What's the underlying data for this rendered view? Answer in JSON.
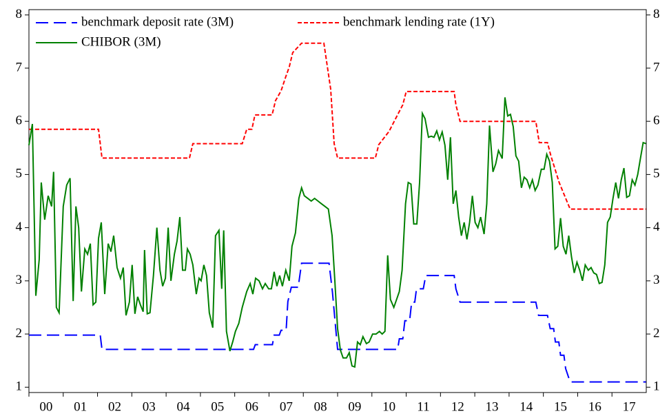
{
  "chart_data": {
    "type": "line",
    "legend": "top-left",
    "xlim": [
      0,
      18
    ],
    "xticks": [
      {
        "value": 0,
        "label": "00"
      },
      {
        "value": 1,
        "label": "01"
      },
      {
        "value": 2,
        "label": "02"
      },
      {
        "value": 3,
        "label": "03"
      },
      {
        "value": 4,
        "label": "04"
      },
      {
        "value": 5,
        "label": "05"
      },
      {
        "value": 6,
        "label": "06"
      },
      {
        "value": 7,
        "label": "07"
      },
      {
        "value": 8,
        "label": "08"
      },
      {
        "value": 9,
        "label": "09"
      },
      {
        "value": 10,
        "label": "10"
      },
      {
        "value": 11,
        "label": "11"
      },
      {
        "value": 12,
        "label": "12"
      },
      {
        "value": 13,
        "label": "13"
      },
      {
        "value": 14,
        "label": "14"
      },
      {
        "value": 15,
        "label": "15"
      },
      {
        "value": 16,
        "label": "16"
      },
      {
        "value": 17,
        "label": "17"
      }
    ],
    "ylim": [
      0.9,
      8.1
    ],
    "yticks": [
      1,
      2,
      3,
      4,
      5,
      6,
      7,
      8
    ],
    "y2lim": [
      0.9,
      8.1
    ],
    "y2ticks": [
      1,
      2,
      3,
      4,
      5,
      6,
      7,
      8
    ],
    "series": [
      {
        "name": "benchmark deposit rate (3M)",
        "color": "#0000ff",
        "style": "long-dash",
        "x": [
          0,
          2.08,
          2.13,
          6.55,
          6.6,
          7.1,
          7.15,
          7.3,
          7.35,
          7.5,
          7.55,
          7.65,
          7.85,
          7.95,
          8.75,
          8.85,
          9.0,
          10.75,
          10.8,
          10.9,
          10.96,
          11.1,
          11.16,
          11.25,
          11.3,
          11.5,
          11.57,
          12.4,
          12.45,
          12.57,
          14.78,
          14.86,
          15.12,
          15.2,
          15.3,
          15.35,
          15.45,
          15.5,
          15.6,
          15.65,
          15.78,
          17.99
        ],
        "values": [
          1.98,
          1.98,
          1.71,
          1.71,
          1.8,
          1.8,
          1.98,
          1.98,
          2.07,
          2.07,
          2.61,
          2.88,
          2.88,
          3.33,
          3.33,
          2.79,
          1.71,
          1.71,
          1.91,
          1.91,
          2.25,
          2.25,
          2.6,
          2.6,
          2.85,
          2.85,
          3.1,
          3.1,
          2.85,
          2.6,
          2.6,
          2.35,
          2.35,
          2.1,
          2.1,
          1.85,
          1.85,
          1.6,
          1.6,
          1.35,
          1.1,
          1.1
        ]
      },
      {
        "name": "benchmark lending rate (1Y)",
        "color": "#ff0000",
        "style": "short-dash",
        "x": [
          0,
          2.03,
          2.13,
          4.68,
          4.78,
          6.22,
          6.35,
          6.5,
          6.59,
          7.09,
          7.19,
          7.35,
          7.49,
          7.59,
          7.69,
          7.95,
          8.6,
          8.8,
          8.9,
          9.0,
          10.1,
          10.2,
          10.5,
          10.7,
          10.9,
          11.0,
          12.4,
          12.45,
          12.57,
          14.78,
          14.88,
          15.12,
          15.22,
          15.34,
          15.46,
          15.62,
          15.78,
          17.99
        ],
        "values": [
          5.85,
          5.85,
          5.31,
          5.31,
          5.58,
          5.58,
          5.85,
          5.85,
          6.12,
          6.12,
          6.39,
          6.57,
          6.84,
          7.02,
          7.29,
          7.47,
          7.47,
          6.6,
          5.58,
          5.31,
          5.31,
          5.56,
          5.81,
          6.06,
          6.31,
          6.56,
          6.56,
          6.31,
          6.0,
          6.0,
          5.6,
          5.6,
          5.35,
          5.1,
          4.85,
          4.6,
          4.35,
          4.35
        ]
      },
      {
        "name": "CHIBOR (3M)",
        "color": "#008000",
        "style": "solid",
        "x": [
          0,
          0.1,
          0.2,
          0.3,
          0.36,
          0.46,
          0.56,
          0.66,
          0.72,
          0.8,
          0.88,
          1.0,
          1.1,
          1.2,
          1.29,
          1.37,
          1.45,
          1.53,
          1.63,
          1.71,
          1.79,
          1.87,
          1.95,
          2.03,
          2.11,
          2.21,
          2.31,
          2.39,
          2.47,
          2.57,
          2.67,
          2.75,
          2.83,
          2.93,
          3.01,
          3.09,
          3.17,
          3.25,
          3.33,
          3.37,
          3.45,
          3.53,
          3.63,
          3.73,
          3.82,
          3.9,
          3.98,
          4.06,
          4.14,
          4.24,
          4.32,
          4.4,
          4.48,
          4.56,
          4.62,
          4.7,
          4.78,
          4.88,
          4.96,
          5.02,
          5.1,
          5.18,
          5.26,
          5.36,
          5.44,
          5.54,
          5.62,
          5.68,
          5.76,
          5.86,
          5.94,
          6.02,
          6.12,
          6.22,
          6.35,
          6.45,
          6.53,
          6.61,
          6.71,
          6.81,
          6.89,
          6.99,
          7.07,
          7.15,
          7.23,
          7.31,
          7.39,
          7.49,
          7.59,
          7.67,
          7.77,
          7.87,
          7.95,
          8.03,
          8.13,
          8.23,
          8.33,
          8.43,
          8.53,
          8.63,
          8.73,
          8.84,
          8.92,
          9.0,
          9.08,
          9.16,
          9.26,
          9.34,
          9.42,
          9.5,
          9.58,
          9.66,
          9.74,
          9.84,
          9.92,
          10.02,
          10.12,
          10.22,
          10.3,
          10.38,
          10.46,
          10.54,
          10.64,
          10.72,
          10.8,
          10.88,
          10.98,
          11.06,
          11.14,
          11.22,
          11.31,
          11.39,
          11.47,
          11.55,
          11.65,
          11.73,
          11.81,
          11.89,
          11.97,
          12.05,
          12.13,
          12.21,
          12.29,
          12.37,
          12.45,
          12.53,
          12.61,
          12.69,
          12.77,
          12.85,
          12.93,
          13.01,
          13.09,
          13.17,
          13.27,
          13.35,
          13.43,
          13.53,
          13.61,
          13.69,
          13.8,
          13.88,
          13.96,
          14.04,
          14.12,
          14.2,
          14.28,
          14.36,
          14.44,
          14.52,
          14.6,
          14.68,
          14.76,
          14.84,
          14.94,
          15.02,
          15.1,
          15.18,
          15.26,
          15.34,
          15.42,
          15.5,
          15.58,
          15.66,
          15.74,
          15.82,
          15.9,
          15.98,
          16.06,
          16.14,
          16.22,
          16.31,
          16.39,
          16.47,
          16.55,
          16.63,
          16.71,
          16.79,
          16.87,
          16.95,
          17.03,
          17.11,
          17.19,
          17.27,
          17.35,
          17.43,
          17.51,
          17.59,
          17.67,
          17.75,
          17.83,
          17.91,
          17.99
        ],
        "values": [
          5.55,
          5.95,
          2.72,
          3.4,
          4.85,
          4.15,
          4.6,
          4.4,
          5.05,
          2.5,
          2.4,
          4.4,
          4.8,
          4.93,
          2.62,
          4.4,
          4.0,
          2.8,
          3.6,
          3.5,
          3.7,
          2.55,
          2.6,
          3.8,
          4.1,
          2.75,
          3.7,
          3.55,
          3.85,
          3.25,
          3.05,
          3.25,
          2.35,
          2.6,
          3.3,
          2.38,
          2.7,
          2.55,
          2.42,
          3.58,
          2.38,
          2.4,
          3.1,
          4.0,
          3.2,
          2.9,
          3.05,
          4.0,
          3.0,
          3.5,
          3.75,
          4.2,
          3.2,
          3.2,
          3.6,
          3.5,
          3.3,
          2.75,
          3.05,
          3.0,
          3.3,
          3.1,
          2.4,
          2.12,
          3.85,
          3.95,
          2.85,
          3.95,
          2.05,
          1.68,
          1.85,
          2.05,
          2.2,
          2.5,
          2.8,
          2.95,
          2.75,
          3.05,
          3.0,
          2.85,
          2.95,
          2.85,
          2.85,
          3.17,
          2.9,
          3.1,
          2.9,
          3.2,
          3.0,
          3.65,
          3.9,
          4.55,
          4.75,
          4.6,
          4.55,
          4.5,
          4.55,
          4.5,
          4.45,
          4.4,
          4.35,
          3.85,
          3.0,
          2.1,
          1.7,
          1.55,
          1.55,
          1.65,
          1.4,
          1.38,
          1.85,
          1.8,
          1.95,
          1.82,
          1.85,
          2.0,
          2.0,
          2.05,
          2.0,
          2.05,
          3.48,
          2.65,
          2.5,
          2.65,
          2.8,
          3.2,
          4.45,
          4.85,
          4.82,
          4.07,
          4.07,
          4.85,
          6.15,
          6.05,
          5.7,
          5.72,
          5.7,
          5.82,
          5.65,
          5.8,
          5.55,
          4.9,
          5.7,
          4.45,
          4.7,
          4.2,
          3.85,
          4.1,
          3.78,
          4.1,
          4.6,
          4.1,
          4.0,
          4.2,
          3.88,
          4.45,
          5.92,
          5.05,
          5.2,
          5.45,
          5.3,
          6.45,
          6.1,
          6.13,
          5.9,
          5.35,
          5.25,
          4.75,
          4.95,
          4.9,
          4.75,
          4.9,
          4.7,
          4.8,
          5.1,
          5.1,
          5.38,
          5.25,
          4.85,
          3.6,
          3.65,
          4.18,
          3.65,
          3.5,
          3.85,
          3.45,
          3.15,
          3.35,
          3.2,
          3.0,
          3.3,
          3.2,
          3.25,
          3.15,
          3.12,
          2.95,
          2.97,
          3.3,
          4.1,
          4.2,
          4.55,
          4.85,
          4.55,
          4.9,
          5.12,
          4.57,
          4.6,
          4.9,
          4.8,
          5.0,
          5.3,
          5.6,
          5.58
        ]
      }
    ]
  }
}
